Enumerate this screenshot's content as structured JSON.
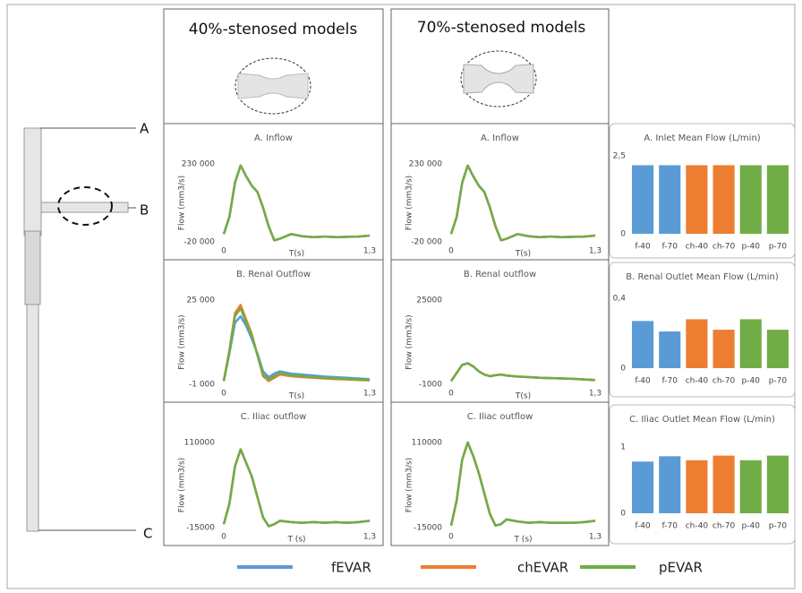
{
  "figure": {
    "column_headers": [
      "40%-stenosed models",
      "70%-stenosed models"
    ],
    "model_labels": [
      "A",
      "B",
      "C"
    ]
  },
  "chart_data": [
    {
      "type": "line",
      "title": "A. Inflow",
      "x_label": "T(s)",
      "y_label": "Flow (mm3/s)",
      "x": [
        0,
        0.05,
        0.1,
        0.15,
        0.2,
        0.25,
        0.3,
        0.35,
        0.4,
        0.45,
        0.5,
        0.6,
        0.7,
        0.8,
        0.9,
        1,
        1.1,
        1.2,
        1.3
      ],
      "xlim": [
        0,
        1.3
      ],
      "xticks": [
        0,
        {
          "value": 1.3,
          "label": "1,3"
        }
      ],
      "ylim": [
        -20000,
        230000
      ],
      "yticks": [
        {
          "value": -20000,
          "label": "-20 000"
        },
        {
          "value": 230000,
          "label": "230 000"
        }
      ],
      "series": [
        {
          "name": "fEVAR",
          "color": "#5b9bd5",
          "values": [
            5000,
            60000,
            170000,
            225000,
            190000,
            160000,
            140000,
            90000,
            30000,
            -15000,
            -10000,
            5000,
            -2000,
            -5000,
            -3000,
            -5000,
            -4000,
            -3000,
            0
          ]
        },
        {
          "name": "chEVAR",
          "color": "#ed7d31",
          "values": [
            5000,
            60000,
            170000,
            225000,
            190000,
            160000,
            140000,
            90000,
            30000,
            -15000,
            -10000,
            5000,
            -2000,
            -5000,
            -3000,
            -5000,
            -4000,
            -3000,
            0
          ]
        },
        {
          "name": "pEVAR",
          "color": "#70ad47",
          "values": [
            5000,
            60000,
            170000,
            225000,
            190000,
            160000,
            140000,
            90000,
            30000,
            -15000,
            -10000,
            5000,
            -2000,
            -5000,
            -3000,
            -5000,
            -4000,
            -3000,
            0
          ]
        }
      ]
    },
    {
      "type": "line",
      "title": "B. Renal Outflow",
      "x_label": "T(s)",
      "y_label": "Flow (mm3/s)",
      "x": [
        0,
        0.05,
        0.1,
        0.15,
        0.2,
        0.25,
        0.3,
        0.35,
        0.4,
        0.45,
        0.5,
        0.6,
        0.7,
        0.8,
        0.9,
        1,
        1.1,
        1.2,
        1.3
      ],
      "xlim": [
        0,
        1.3
      ],
      "xticks": [
        0,
        {
          "value": 1.3,
          "label": "1,3"
        }
      ],
      "ylim": [
        -1000,
        25000
      ],
      "yticks": [
        {
          "value": -1000,
          "label": "-1 000"
        },
        {
          "value": 25000,
          "label": "25 000"
        }
      ],
      "series": [
        {
          "name": "fEVAR",
          "color": "#5b9bd5",
          "values": [
            0,
            8500,
            18000,
            20000,
            17000,
            13000,
            8500,
            3000,
            1200,
            2300,
            3000,
            2300,
            2000,
            1700,
            1400,
            1200,
            1000,
            800,
            600
          ]
        },
        {
          "name": "chEVAR",
          "color": "#ed7d31",
          "values": [
            0,
            9500,
            21000,
            23500,
            19000,
            14500,
            8000,
            1500,
            0,
            1000,
            2000,
            1500,
            1200,
            1000,
            800,
            600,
            500,
            300,
            200
          ]
        },
        {
          "name": "pEVAR",
          "color": "#70ad47",
          "values": [
            0,
            9000,
            20000,
            22500,
            18000,
            14000,
            8000,
            2000,
            500,
            1500,
            2500,
            1800,
            1500,
            1200,
            1000,
            800,
            700,
            500,
            400
          ]
        }
      ]
    },
    {
      "type": "line",
      "title": "C. Iliac outflow",
      "x_label": "T (s)",
      "y_label": "Flow (mm3/s)",
      "x": [
        0,
        0.05,
        0.1,
        0.15,
        0.2,
        0.25,
        0.3,
        0.35,
        0.4,
        0.45,
        0.5,
        0.6,
        0.7,
        0.8,
        0.9,
        1,
        1.1,
        1.2,
        1.3
      ],
      "xlim": [
        0,
        1.3
      ],
      "xticks": [
        0,
        {
          "value": 1.3,
          "label": "1,3"
        }
      ],
      "ylim": [
        -15000,
        110000
      ],
      "yticks": [
        -15000,
        110000
      ],
      "series": [
        {
          "name": "fEVAR",
          "color": "#5b9bd5",
          "values": [
            -10000,
            20000,
            75000,
            100000,
            80000,
            60000,
            30000,
            0,
            -13000,
            -10000,
            -5000,
            -7000,
            -8000,
            -7000,
            -8000,
            -7000,
            -8000,
            -7000,
            -5000
          ]
        },
        {
          "name": "chEVAR",
          "color": "#ed7d31",
          "values": [
            -10000,
            20000,
            75000,
            100000,
            80000,
            60000,
            30000,
            0,
            -13000,
            -10000,
            -5000,
            -7000,
            -8000,
            -7000,
            -8000,
            -7000,
            -8000,
            -7000,
            -5000
          ]
        },
        {
          "name": "pEVAR",
          "color": "#70ad47",
          "values": [
            -10000,
            20000,
            75000,
            100000,
            80000,
            60000,
            30000,
            0,
            -13000,
            -10000,
            -5000,
            -7000,
            -8000,
            -7000,
            -8000,
            -7000,
            -8000,
            -7000,
            -5000
          ]
        }
      ]
    },
    {
      "type": "line",
      "title": "A. Inflow",
      "x_label": "T(s)",
      "y_label": "Flow (mm3/s)",
      "x": [
        0,
        0.05,
        0.1,
        0.15,
        0.2,
        0.25,
        0.3,
        0.35,
        0.4,
        0.45,
        0.5,
        0.6,
        0.7,
        0.8,
        0.9,
        1,
        1.1,
        1.2,
        1.3
      ],
      "xlim": [
        0,
        1.3
      ],
      "xticks": [
        0,
        {
          "value": 1.3,
          "label": "1,3"
        }
      ],
      "ylim": [
        -20000,
        230000
      ],
      "yticks": [
        {
          "value": -20000,
          "label": "-20 000"
        },
        {
          "value": 230000,
          "label": "230 000"
        }
      ],
      "series": [
        {
          "name": "fEVAR",
          "color": "#5b9bd5",
          "values": [
            5000,
            60000,
            170000,
            225000,
            190000,
            160000,
            140000,
            90000,
            30000,
            -15000,
            -10000,
            5000,
            -2000,
            -5000,
            -3000,
            -5000,
            -4000,
            -3000,
            0
          ]
        },
        {
          "name": "chEVAR",
          "color": "#ed7d31",
          "values": [
            5000,
            60000,
            170000,
            225000,
            190000,
            160000,
            140000,
            90000,
            30000,
            -15000,
            -10000,
            5000,
            -2000,
            -5000,
            -3000,
            -5000,
            -4000,
            -3000,
            0
          ]
        },
        {
          "name": "pEVAR",
          "color": "#70ad47",
          "values": [
            5000,
            60000,
            170000,
            225000,
            190000,
            160000,
            140000,
            90000,
            30000,
            -15000,
            -10000,
            5000,
            -2000,
            -5000,
            -3000,
            -5000,
            -4000,
            -3000,
            0
          ]
        }
      ]
    },
    {
      "type": "line",
      "title": "B. Renal outflow",
      "x_label": "T(s)",
      "y_label": "Flow (mm3/s)",
      "x": [
        0,
        0.05,
        0.1,
        0.15,
        0.2,
        0.25,
        0.3,
        0.35,
        0.4,
        0.45,
        0.5,
        0.6,
        0.7,
        0.8,
        0.9,
        1,
        1.1,
        1.2,
        1.3
      ],
      "xlim": [
        0,
        1.3
      ],
      "xticks": [
        0,
        {
          "value": 1.3,
          "label": "1,3"
        }
      ],
      "ylim": [
        -1000,
        25000
      ],
      "yticks": [
        -1000,
        25000
      ],
      "series": [
        {
          "name": "fEVAR",
          "color": "#5b9bd5",
          "values": [
            0,
            2500,
            5000,
            5500,
            4500,
            3000,
            2000,
            1500,
            1800,
            2000,
            1700,
            1400,
            1200,
            1000,
            900,
            800,
            700,
            500,
            300
          ]
        },
        {
          "name": "chEVAR",
          "color": "#ed7d31",
          "values": [
            0,
            2500,
            5000,
            5500,
            4500,
            3000,
            2000,
            1500,
            1800,
            2000,
            1700,
            1400,
            1200,
            1000,
            900,
            800,
            700,
            500,
            300
          ]
        },
        {
          "name": "pEVAR",
          "color": "#70ad47",
          "values": [
            0,
            2500,
            5000,
            5500,
            4500,
            3000,
            2000,
            1500,
            1800,
            2000,
            1700,
            1400,
            1200,
            1000,
            900,
            800,
            700,
            500,
            300
          ]
        }
      ]
    },
    {
      "type": "line",
      "title": "C. Iliac outflow",
      "x_label": "T (s)",
      "y_label": "Flow (mm3/s)",
      "x": [
        0,
        0.05,
        0.1,
        0.15,
        0.2,
        0.25,
        0.3,
        0.35,
        0.4,
        0.45,
        0.5,
        0.6,
        0.7,
        0.8,
        0.9,
        1,
        1.1,
        1.2,
        1.3
      ],
      "xlim": [
        0,
        1.3
      ],
      "xticks": [
        0,
        {
          "value": 1.3,
          "label": "1,3"
        }
      ],
      "ylim": [
        -15000,
        110000
      ],
      "yticks": [
        -15000,
        110000
      ],
      "series": [
        {
          "name": "fEVAR",
          "color": "#5b9bd5",
          "values": [
            -12000,
            25000,
            85000,
            110000,
            90000,
            65000,
            35000,
            5000,
            -12000,
            -10000,
            -3000,
            -6000,
            -8000,
            -7000,
            -8000,
            -8000,
            -8000,
            -7000,
            -5000
          ]
        },
        {
          "name": "chEVAR",
          "color": "#ed7d31",
          "values": [
            -12000,
            25000,
            85000,
            110000,
            90000,
            65000,
            35000,
            5000,
            -12000,
            -10000,
            -3000,
            -6000,
            -8000,
            -7000,
            -8000,
            -8000,
            -8000,
            -7000,
            -5000
          ]
        },
        {
          "name": "pEVAR",
          "color": "#70ad47",
          "values": [
            -12000,
            25000,
            85000,
            110000,
            90000,
            65000,
            35000,
            5000,
            -12000,
            -10000,
            -3000,
            -6000,
            -8000,
            -7000,
            -8000,
            -8000,
            -8000,
            -7000,
            -5000
          ]
        }
      ]
    },
    {
      "type": "bar",
      "title": "A. Inlet Mean Flow (L/min)",
      "categories": [
        "f-40",
        "f-70",
        "ch-40",
        "ch-70",
        "p-40",
        "p-70"
      ],
      "values": [
        2.2,
        2.2,
        2.2,
        2.2,
        2.2,
        2.2
      ],
      "colors": [
        "#5b9bd5",
        "#5b9bd5",
        "#ed7d31",
        "#ed7d31",
        "#70ad47",
        "#70ad47"
      ],
      "ylim": [
        0,
        2.5
      ],
      "yticks": [
        0,
        {
          "value": 2.5,
          "label": "2,5"
        }
      ]
    },
    {
      "type": "bar",
      "title": "B. Renal Outlet Mean Flow (L/min)",
      "categories": [
        "f-40",
        "f-70",
        "ch-40",
        "ch-70",
        "p-40",
        "p-70"
      ],
      "values": [
        0.27,
        0.21,
        0.28,
        0.22,
        0.28,
        0.22
      ],
      "colors": [
        "#5b9bd5",
        "#5b9bd5",
        "#ed7d31",
        "#ed7d31",
        "#70ad47",
        "#70ad47"
      ],
      "ylim": [
        0,
        0.4
      ],
      "yticks": [
        0,
        {
          "value": 0.4,
          "label": "0,4"
        }
      ]
    },
    {
      "type": "bar",
      "title": "C. Iliac Outlet Mean Flow (L/min)",
      "categories": [
        "f-40",
        "f-70",
        "ch-40",
        "ch-70",
        "p-40",
        "p-70"
      ],
      "values": [
        0.78,
        0.86,
        0.8,
        0.87,
        0.8,
        0.87
      ],
      "colors": [
        "#5b9bd5",
        "#5b9bd5",
        "#ed7d31",
        "#ed7d31",
        "#70ad47",
        "#70ad47"
      ],
      "ylim": [
        0,
        1
      ],
      "yticks": [
        0,
        1
      ]
    }
  ]
}
